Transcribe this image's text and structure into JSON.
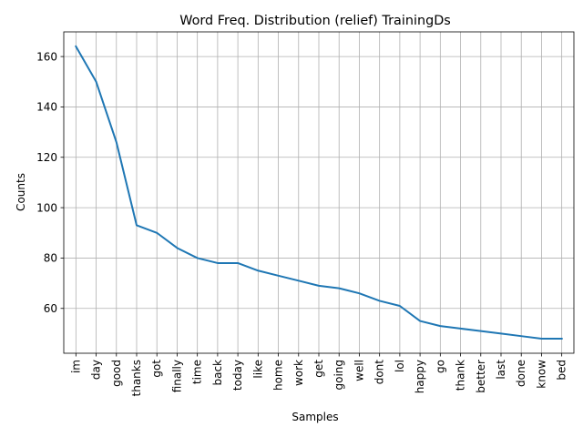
{
  "chart_data": {
    "type": "line",
    "title": "Word Freq. Distribution (relief) TrainingDs",
    "xlabel": "Samples",
    "ylabel": "Counts",
    "categories": [
      "im",
      "day",
      "good",
      "thanks",
      "got",
      "finally",
      "time",
      "back",
      "today",
      "like",
      "home",
      "work",
      "get",
      "going",
      "well",
      "dont",
      "lol",
      "happy",
      "go",
      "thank",
      "better",
      "last",
      "done",
      "know",
      "bed"
    ],
    "series": [
      {
        "values": [
          164,
          150,
          126,
          93,
          90,
          84,
          80,
          78,
          78,
          75,
          73,
          71,
          69,
          68,
          66,
          63,
          61,
          55,
          53,
          52,
          51,
          50,
          49,
          48,
          48
        ],
        "color": "#1f77b4"
      }
    ],
    "ylim": [
      42.2,
      169.8
    ],
    "yticks": [
      60,
      80,
      100,
      120,
      140,
      160
    ],
    "grid": true
  }
}
